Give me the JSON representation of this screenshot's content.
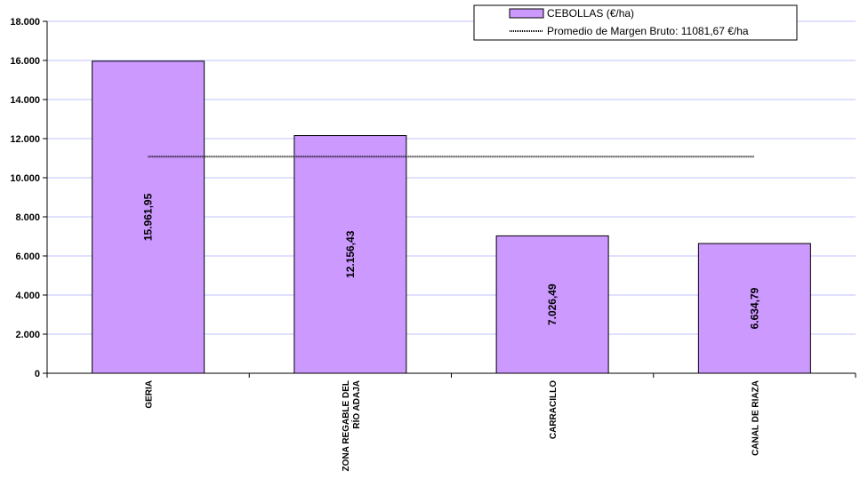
{
  "chart_data": {
    "type": "bar",
    "categories": [
      "GERIA",
      "ZONA REGABLE DEL RÍO ADAJA",
      "CARRACILLO",
      "CANAL DE RIAZA"
    ],
    "category_lines": [
      [
        "GERIA"
      ],
      [
        "ZONA REGABLE DEL",
        "RÍO ADAJA"
      ],
      [
        "CARRACILLO"
      ],
      [
        "CANAL DE RIAZA"
      ]
    ],
    "series": [
      {
        "name": "CEBOLLAS (€/ha)",
        "values": [
          15961.95,
          12156.43,
          7026.49,
          6634.79
        ],
        "labels": [
          "15.961,95",
          "12.156,43",
          "7.026,49",
          "6.634,79"
        ],
        "color": "#cc99ff"
      }
    ],
    "average": {
      "name": "Promedio de Margen Bruto: 11081,67 €/ha",
      "value": 11081.67
    },
    "ylim": [
      0,
      18000
    ],
    "yticks": [
      0,
      2000,
      4000,
      6000,
      8000,
      10000,
      12000,
      14000,
      16000,
      18000
    ],
    "ytick_labels": [
      "0",
      "2.000",
      "4.000",
      "6.000",
      "8.000",
      "10.000",
      "12.000",
      "14.000",
      "16.000",
      "18.000"
    ],
    "grid": true,
    "grid_color": "#c0c0ff",
    "legend_position": "top-right"
  }
}
